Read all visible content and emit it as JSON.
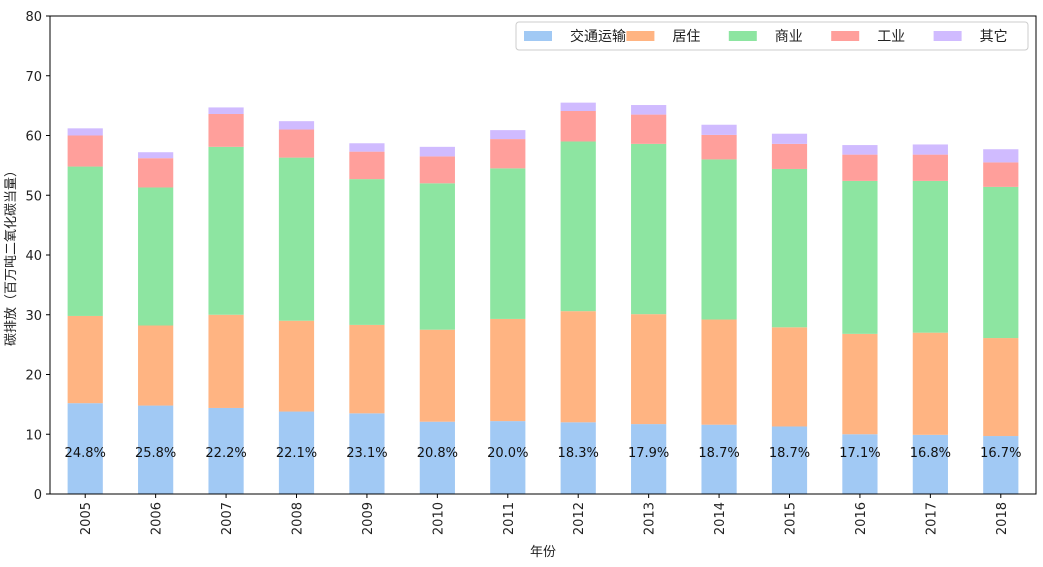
{
  "chart_data": {
    "type": "bar",
    "stacked": true,
    "title": "",
    "xlabel": "年份",
    "ylabel": "碳排放（百万吨二氧化碳当量）",
    "ylim": [
      0,
      80
    ],
    "yticks": [
      0,
      10,
      20,
      30,
      40,
      50,
      60,
      70,
      80
    ],
    "grid": false,
    "legend_position": "top-right",
    "categories": [
      "2005",
      "2006",
      "2007",
      "2008",
      "2009",
      "2010",
      "2011",
      "2012",
      "2013",
      "2014",
      "2015",
      "2016",
      "2017",
      "2018"
    ],
    "series": [
      {
        "name": "交通运输",
        "color": "#a1c9f4",
        "values": [
          15.2,
          14.8,
          14.4,
          13.8,
          13.5,
          12.1,
          12.2,
          12.0,
          11.7,
          11.6,
          11.3,
          10.0,
          9.9,
          9.7
        ]
      },
      {
        "name": "居住",
        "color": "#ffb482",
        "values": [
          14.6,
          13.4,
          15.6,
          15.2,
          14.8,
          15.4,
          17.1,
          18.6,
          18.4,
          17.6,
          16.6,
          16.8,
          17.1,
          16.4
        ]
      },
      {
        "name": "商业",
        "color": "#8de5a1",
        "values": [
          25.0,
          23.1,
          28.1,
          27.3,
          24.4,
          24.5,
          25.2,
          28.4,
          28.5,
          26.8,
          26.5,
          25.6,
          25.4,
          25.3
        ]
      },
      {
        "name": "工业",
        "color": "#ff9f9b",
        "values": [
          5.2,
          4.9,
          5.5,
          4.7,
          4.6,
          4.5,
          4.9,
          5.1,
          4.9,
          4.1,
          4.2,
          4.4,
          4.4,
          4.1
        ]
      },
      {
        "name": "其它",
        "color": "#d0bbff",
        "values": [
          1.2,
          1.0,
          1.1,
          1.4,
          1.4,
          1.6,
          1.5,
          1.4,
          1.6,
          1.7,
          1.7,
          1.6,
          1.7,
          2.2
        ]
      }
    ],
    "share_labels": [
      "24.8%",
      "25.8%",
      "22.2%",
      "22.1%",
      "23.1%",
      "20.8%",
      "20.0%",
      "18.3%",
      "17.9%",
      "18.7%",
      "18.7%",
      "17.1%",
      "16.8%",
      "16.7%"
    ]
  }
}
